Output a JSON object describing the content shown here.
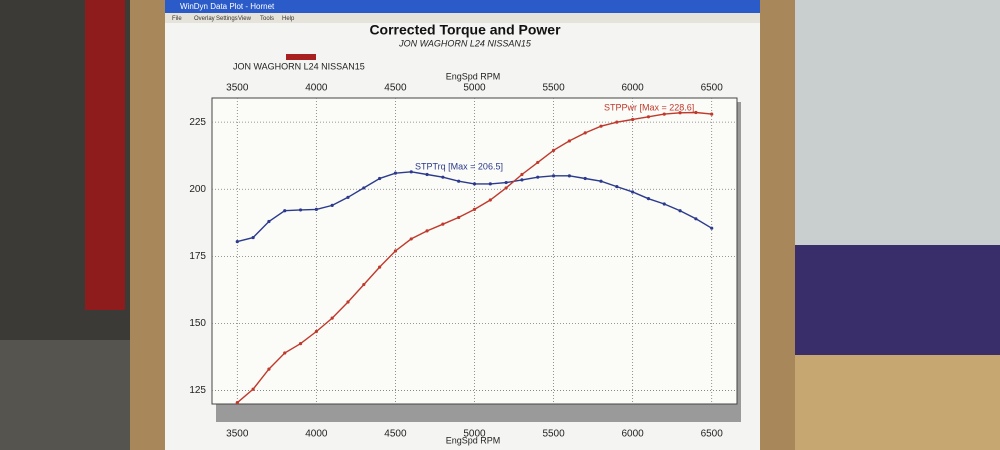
{
  "window": {
    "title": "WinDyn Data Plot - Hornet",
    "menu": [
      "File",
      "Overlay",
      "Settings",
      "View",
      "Tools",
      "Help"
    ]
  },
  "chart_data": {
    "type": "line",
    "title": "Corrected Torque and Power",
    "subtitle": "JON WAGHORN L24 NISSAN15",
    "legend_label": "JON WAGHORN L24 NISSAN15",
    "legend_color": "#a82020",
    "x_label": "EngSpd RPM",
    "x": [
      3500,
      3600,
      3700,
      3800,
      3900,
      4000,
      4100,
      4200,
      4300,
      4400,
      4500,
      4600,
      4700,
      4800,
      4900,
      5000,
      5100,
      5200,
      5300,
      5400,
      5500,
      5600,
      5700,
      5800,
      5900,
      6000,
      6100,
      6200,
      6300,
      6400,
      6500
    ],
    "series": [
      {
        "name": "STPTrq [Max = 206.5]",
        "color": "#2b3a8c",
        "values": [
          180.5,
          182,
          188,
          192,
          192.3,
          192.5,
          194,
          197,
          200.5,
          204,
          206,
          206.5,
          205.5,
          204.5,
          203,
          202,
          202,
          202.5,
          203.5,
          204.5,
          205,
          205,
          204,
          203,
          201,
          199,
          196.5,
          194.5,
          192,
          189,
          185.5
        ]
      },
      {
        "name": "STPPwr [Max = 228.6]",
        "color": "#c0392b",
        "values": [
          120.5,
          125.5,
          133,
          139,
          142.5,
          147,
          152,
          158,
          164.5,
          171,
          177,
          181.5,
          184.5,
          187,
          189.5,
          192.5,
          196,
          200.5,
          205.5,
          210,
          214.5,
          218,
          221,
          223.5,
          225,
          226,
          227,
          228,
          228.5,
          228.6,
          228
        ]
      }
    ],
    "xlim": [
      3340,
      6660
    ],
    "xticks": [
      3500,
      4000,
      4500,
      5000,
      5500,
      6000,
      6500
    ],
    "ylim": [
      120,
      234
    ],
    "yticks": [
      125,
      150,
      175,
      200,
      225
    ],
    "grid": true
  }
}
